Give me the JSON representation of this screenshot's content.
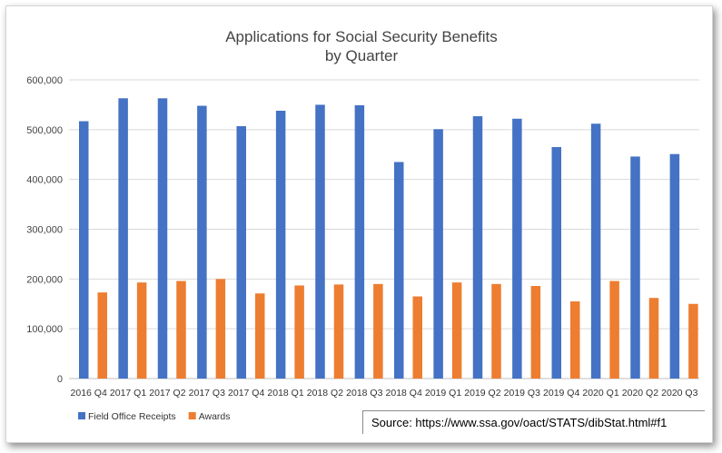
{
  "chart_data": {
    "type": "bar",
    "title": "Applications for Social Security Benefits",
    "subtitle": "by Quarter",
    "xlabel": "",
    "ylabel": "",
    "ylim": [
      0,
      600000
    ],
    "yticks": [
      0,
      100000,
      200000,
      300000,
      400000,
      500000,
      600000
    ],
    "ytick_labels": [
      "0",
      "100,000",
      "200,000",
      "300,000",
      "400,000",
      "500,000",
      "600,000"
    ],
    "grid": true,
    "legend_position": "bottom-left",
    "categories": [
      "2016 Q4",
      "2017 Q1",
      "2017 Q2",
      "2017 Q3",
      "2017 Q4",
      "2018 Q1",
      "2018 Q2",
      "2018 Q3",
      "2018 Q4",
      "2019 Q1",
      "2019 Q2",
      "2019 Q3",
      "2019 Q4",
      "2020 Q1",
      "2020 Q2",
      "2020 Q3"
    ],
    "series": [
      {
        "name": "Field Office Receipts",
        "color": "#4472c4",
        "values": [
          517000,
          563000,
          563000,
          548000,
          507000,
          538000,
          550000,
          549000,
          435000,
          501000,
          527000,
          522000,
          465000,
          512000,
          446000,
          451000
        ]
      },
      {
        "name": "Awards",
        "color": "#ed7d31",
        "values": [
          173000,
          193000,
          196000,
          200000,
          171000,
          187000,
          189000,
          190000,
          165000,
          193000,
          190000,
          186000,
          155000,
          196000,
          162000,
          150000
        ]
      }
    ]
  },
  "source_text": "Source: https://www.ssa.gov/oact/STATS/dibStat.html#f1"
}
